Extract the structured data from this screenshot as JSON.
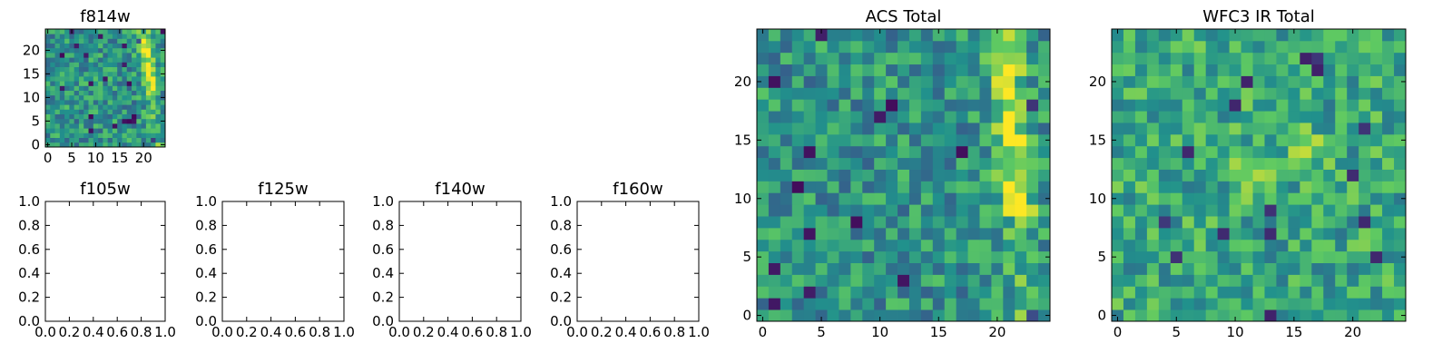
{
  "chart_data": [
    {
      "type": "heatmap",
      "title": "f814w",
      "grid": "25x25",
      "xlim": [
        -0.5,
        24.5
      ],
      "ylim": [
        -0.5,
        24.5
      ],
      "xticks": [
        0,
        5,
        10,
        15,
        20
      ],
      "yticks": [
        0,
        5,
        10,
        15,
        20
      ],
      "colormap": "viridis",
      "features": "noisy field with a bright yellow diagonal band near the upper-right corner"
    },
    {
      "type": "empty",
      "title": "f105w",
      "xlim": [
        0,
        1
      ],
      "ylim": [
        0,
        1
      ],
      "xticks": [
        "0.0",
        "0.2",
        "0.4",
        "0.6",
        "0.8",
        "1.0"
      ],
      "yticks": [
        "0.0",
        "0.2",
        "0.4",
        "0.6",
        "0.8",
        "1.0"
      ]
    },
    {
      "type": "empty",
      "title": "f125w",
      "xlim": [
        0,
        1
      ],
      "ylim": [
        0,
        1
      ],
      "xticks": [
        "0.0",
        "0.2",
        "0.4",
        "0.6",
        "0.8",
        "1.0"
      ],
      "yticks": [
        "0.0",
        "0.2",
        "0.4",
        "0.6",
        "0.8",
        "1.0"
      ]
    },
    {
      "type": "empty",
      "title": "f140w",
      "xlim": [
        0,
        1
      ],
      "ylim": [
        0,
        1
      ],
      "xticks": [
        "0.0",
        "0.2",
        "0.4",
        "0.6",
        "0.8",
        "1.0"
      ],
      "yticks": [
        "0.0",
        "0.2",
        "0.4",
        "0.6",
        "0.8",
        "1.0"
      ]
    },
    {
      "type": "empty",
      "title": "f160w",
      "xlim": [
        0,
        1
      ],
      "ylim": [
        0,
        1
      ],
      "xticks": [
        "0.0",
        "0.2",
        "0.4",
        "0.6",
        "0.8",
        "1.0"
      ],
      "yticks": [
        "0.0",
        "0.2",
        "0.4",
        "0.6",
        "0.8",
        "1.0"
      ]
    },
    {
      "type": "heatmap",
      "title": "ACS Total",
      "grid": "25x25",
      "xlim": [
        -0.5,
        24.5
      ],
      "ylim": [
        -0.5,
        24.5
      ],
      "xticks": [
        0,
        5,
        10,
        15,
        20
      ],
      "yticks": [
        0,
        5,
        10,
        15,
        20
      ],
      "colormap": "viridis",
      "features": "noisy field with a bright yellow band along x≈20-24, upper region"
    },
    {
      "type": "heatmap",
      "title": "WFC3 IR Total",
      "grid": "25x25",
      "xlim": [
        -0.5,
        24.5
      ],
      "ylim": [
        -0.5,
        24.5
      ],
      "xticks": [
        0,
        5,
        10,
        15,
        20
      ],
      "yticks": [
        0,
        5,
        10,
        15,
        20
      ],
      "colormap": "viridis",
      "features": "noisy green field with scattered yellow clusters near center"
    }
  ],
  "colors": {
    "viridis": [
      "#440154",
      "#3b528b",
      "#21918c",
      "#5ec962",
      "#fde725"
    ]
  }
}
